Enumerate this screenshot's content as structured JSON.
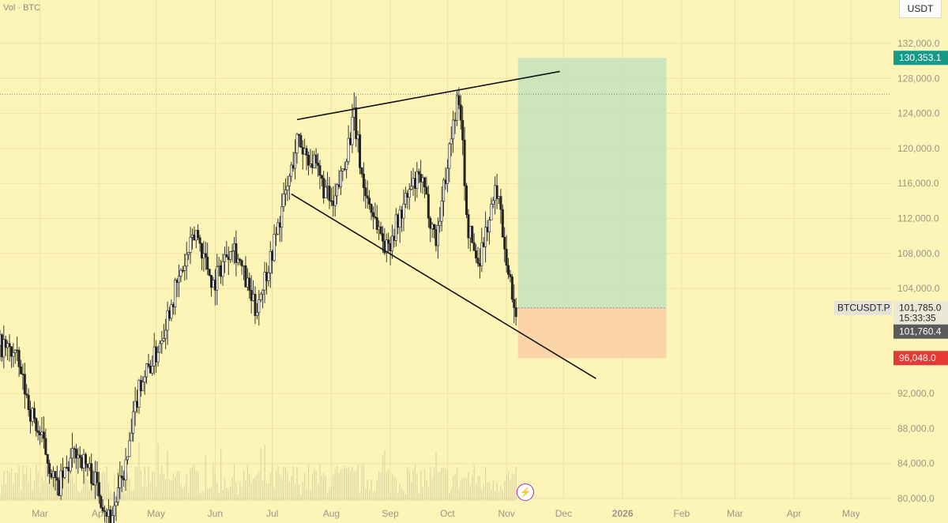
{
  "header": {
    "vol_label": "Vol · BTC",
    "unit": "USDT"
  },
  "colors": {
    "background": "#fdf5b8",
    "grid": "#ece2a2",
    "candle": "#222222",
    "target_zone": "#c7e3bd",
    "stop_zone": "#fbd2a6",
    "target_badge": "#159a88",
    "stop_badge": "#e53935",
    "price_badge": "#5a5a5a",
    "event_icon": "#9b2fc9"
  },
  "icons": {
    "event": "lightning-bolt-icon"
  },
  "chart_data": {
    "type": "candlestick",
    "symbol": "BTCUSDT.P",
    "ylim": [
      80000,
      132000
    ],
    "y_ticks": [
      "132,000.0",
      "128,000.0",
      "124,000.0",
      "120,000.0",
      "116,000.0",
      "112,000.0",
      "108,000.0",
      "104,000.0",
      "92,000.0",
      "88,000.0",
      "84,000.0",
      "80,000.0"
    ],
    "y_tick_values": [
      132000,
      128000,
      124000,
      120000,
      116000,
      112000,
      108000,
      104000,
      92000,
      88000,
      84000,
      80000
    ],
    "x_ticks": [
      "Mar",
      "Apr",
      "May",
      "Jun",
      "Jul",
      "Aug",
      "Sep",
      "Oct",
      "Nov",
      "Dec",
      "2026",
      "Feb",
      "Mar",
      "Apr",
      "May"
    ],
    "x_tick_dates": [
      "2025-03-01",
      "2025-04-01",
      "2025-05-01",
      "2025-06-01",
      "2025-07-01",
      "2025-08-01",
      "2025-09-01",
      "2025-10-01",
      "2025-11-01",
      "2025-12-01",
      "2026-01-01",
      "2026-02-01",
      "2026-03-01",
      "2026-04-01",
      "2026-05-01"
    ],
    "x_range": [
      "2025-02-08",
      "2026-05-22"
    ],
    "price_path": [
      {
        "date": "2025-02-08",
        "price": 97500
      },
      {
        "date": "2025-02-16",
        "price": 96500
      },
      {
        "date": "2025-02-24",
        "price": 90000
      },
      {
        "date": "2025-03-03",
        "price": 86000
      },
      {
        "date": "2025-03-10",
        "price": 81000
      },
      {
        "date": "2025-03-20",
        "price": 85500
      },
      {
        "date": "2025-03-29",
        "price": 82500
      },
      {
        "date": "2025-04-07",
        "price": 77500
      },
      {
        "date": "2025-04-16",
        "price": 84500
      },
      {
        "date": "2025-04-22",
        "price": 93000
      },
      {
        "date": "2025-05-01",
        "price": 96500
      },
      {
        "date": "2025-05-09",
        "price": 102500
      },
      {
        "date": "2025-05-22",
        "price": 110500
      },
      {
        "date": "2025-05-31",
        "price": 104500
      },
      {
        "date": "2025-06-10",
        "price": 109500
      },
      {
        "date": "2025-06-22",
        "price": 101500
      },
      {
        "date": "2025-06-30",
        "price": 107500
      },
      {
        "date": "2025-07-11",
        "price": 117500
      },
      {
        "date": "2025-07-14",
        "price": 121000
      },
      {
        "date": "2025-07-22",
        "price": 118500
      },
      {
        "date": "2025-08-02",
        "price": 113000
      },
      {
        "date": "2025-08-13",
        "price": 123500
      },
      {
        "date": "2025-08-18",
        "price": 115500
      },
      {
        "date": "2025-08-30",
        "price": 108500
      },
      {
        "date": "2025-09-12",
        "price": 115500
      },
      {
        "date": "2025-09-17",
        "price": 116500
      },
      {
        "date": "2025-09-25",
        "price": 109500
      },
      {
        "date": "2025-10-02",
        "price": 120000
      },
      {
        "date": "2025-10-06",
        "price": 125500
      },
      {
        "date": "2025-10-09",
        "price": 121500
      },
      {
        "date": "2025-10-11",
        "price": 111500
      },
      {
        "date": "2025-10-17",
        "price": 107000
      },
      {
        "date": "2025-10-27",
        "price": 115500
      },
      {
        "date": "2025-11-04",
        "price": 103000
      },
      {
        "date": "2025-11-06",
        "price": 101785
      }
    ],
    "volume": {
      "label": "Vol · BTC"
    },
    "horizontal_line": 126200,
    "trendlines": [
      {
        "from": {
          "date": "2025-07-14",
          "price": 123300
        },
        "to": {
          "date": "2025-11-29",
          "price": 128800
        }
      },
      {
        "from": {
          "date": "2025-07-11",
          "price": 114800
        },
        "to": {
          "date": "2025-12-18",
          "price": 93700
        }
      }
    ],
    "position": {
      "start": "2025-11-07",
      "end": "2026-01-24",
      "entry": 101785.0,
      "target": 130353.1,
      "stop": 96048.0
    },
    "labels": {
      "target_price": "130,353.1",
      "symbol": "BTCUSDT.P",
      "last_price": "101,785.0",
      "countdown": "15:33:35",
      "mark_price": "101,760.4",
      "stop_price": "96,048.0"
    },
    "grid": true
  }
}
